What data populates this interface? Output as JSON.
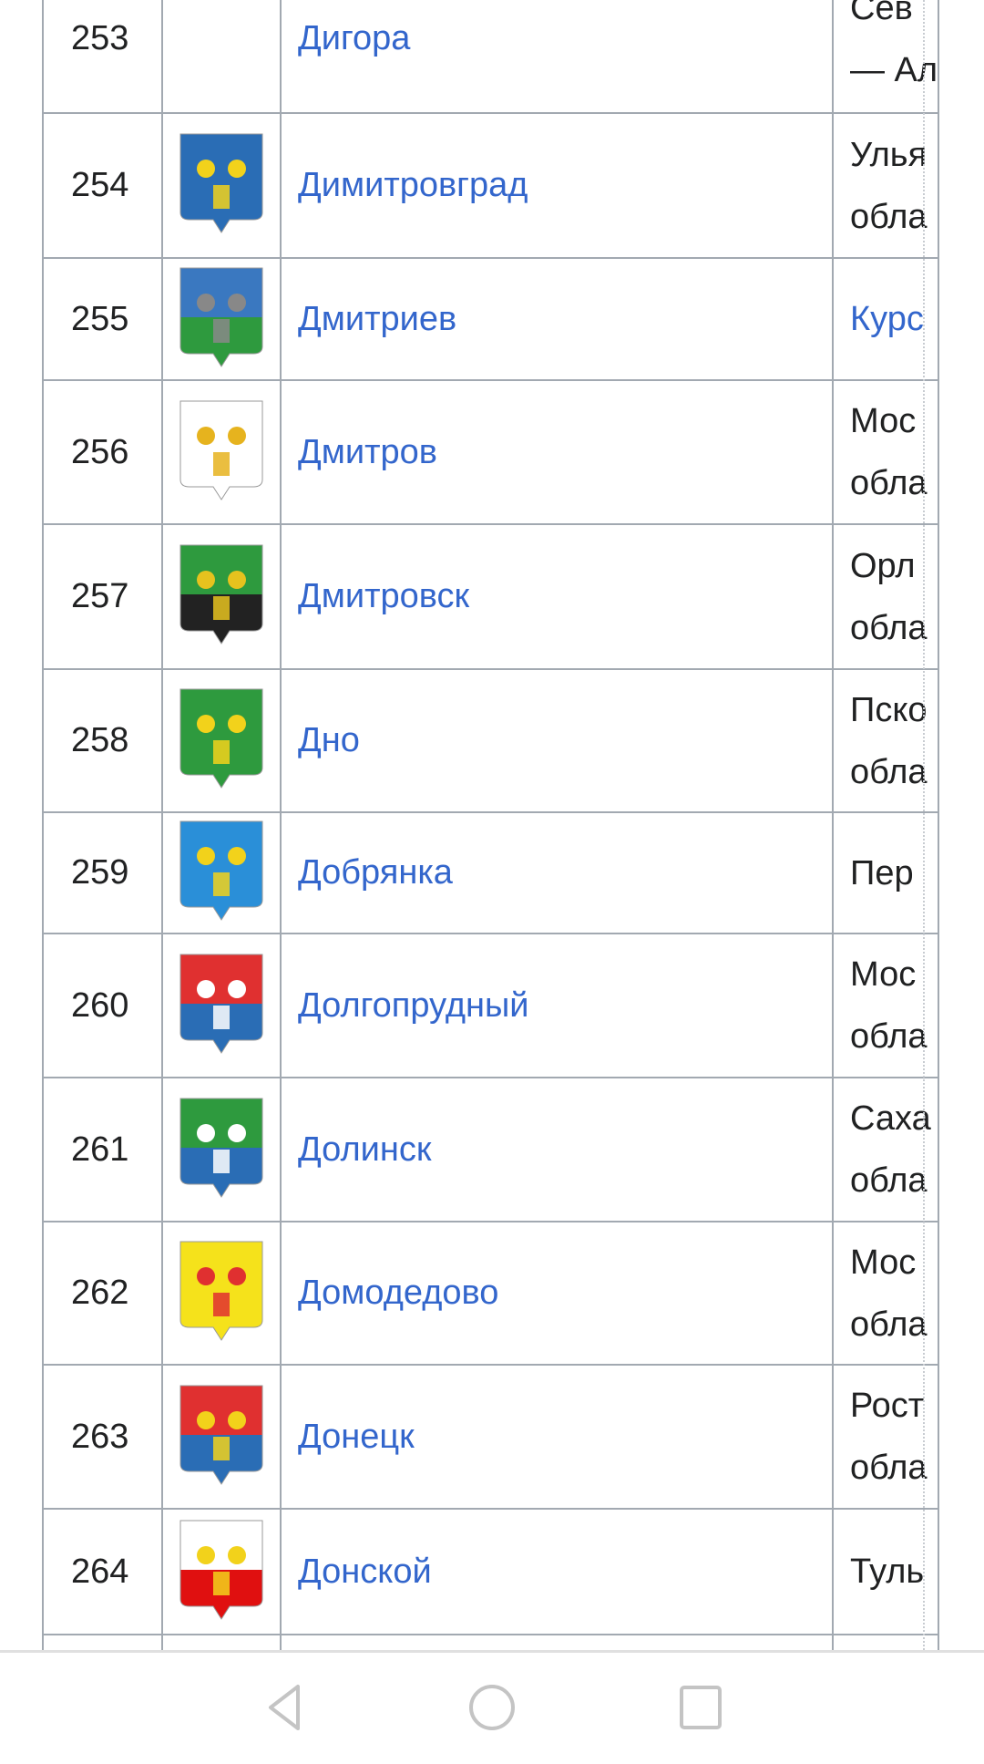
{
  "rows": [
    {
      "num": "253",
      "name": "Дигора",
      "region": [
        "Сев",
        "— Ал"
      ],
      "region_link": false,
      "arms": null
    },
    {
      "num": "254",
      "name": "Димитровград",
      "region": [
        "Улья",
        "обла"
      ],
      "region_link": false,
      "arms": {
        "top": "#2a6db5",
        "bottom": "#2a6db5",
        "accent": "#f2d21b"
      }
    },
    {
      "num": "255",
      "name": "Дмитриев",
      "region": [
        "Курс"
      ],
      "region_link": true,
      "arms": {
        "top": "#3a78c0",
        "bottom": "#2e9a3e",
        "accent": "#888888"
      }
    },
    {
      "num": "256",
      "name": "Дмитров",
      "region": [
        "Мос",
        "обла"
      ],
      "region_link": false,
      "arms": {
        "top": "#ffffff",
        "bottom": "#ffffff",
        "accent": "#e6b31e"
      }
    },
    {
      "num": "257",
      "name": "Дмитровск",
      "region": [
        "Орл",
        "обла"
      ],
      "region_link": false,
      "arms": {
        "top": "#2e9a3e",
        "bottom": "#222222",
        "accent": "#e6c21e"
      }
    },
    {
      "num": "258",
      "name": "Дно",
      "region": [
        "Пско",
        "обла"
      ],
      "region_link": false,
      "arms": {
        "top": "#2e9a3e",
        "bottom": "#2e9a3e",
        "accent": "#f2d21b"
      }
    },
    {
      "num": "259",
      "name": "Добрянка",
      "region": [
        "Пер"
      ],
      "region_link": false,
      "arms": {
        "top": "#2a8fd8",
        "bottom": "#2a8fd8",
        "accent": "#f2d21b"
      }
    },
    {
      "num": "260",
      "name": "Долгопрудный",
      "region": [
        "Мос",
        "обла"
      ],
      "region_link": false,
      "arms": {
        "top": "#e03030",
        "bottom": "#2a6db5",
        "accent": "#ffffff"
      }
    },
    {
      "num": "261",
      "name": "Долинск",
      "region": [
        "Саха",
        "обла"
      ],
      "region_link": false,
      "arms": {
        "top": "#2e9a3e",
        "bottom": "#2a6db5",
        "accent": "#ffffff"
      }
    },
    {
      "num": "262",
      "name": "Домодедово",
      "region": [
        "Мос",
        "обла"
      ],
      "region_link": false,
      "arms": {
        "top": "#f5e21b",
        "bottom": "#f5e21b",
        "accent": "#e03030"
      }
    },
    {
      "num": "263",
      "name": "Донецк",
      "region": [
        "Рост",
        "обла"
      ],
      "region_link": false,
      "arms": {
        "top": "#e03030",
        "bottom": "#2a6db5",
        "accent": "#f2d21b"
      }
    },
    {
      "num": "264",
      "name": "Донской",
      "region": [
        "Туль"
      ],
      "region_link": false,
      "arms": {
        "top": "#ffffff",
        "bottom": "#e01010",
        "accent": "#f2d21b"
      }
    }
  ],
  "navbar": {
    "back": "back-icon",
    "home": "home-icon",
    "recents": "recents-icon"
  }
}
